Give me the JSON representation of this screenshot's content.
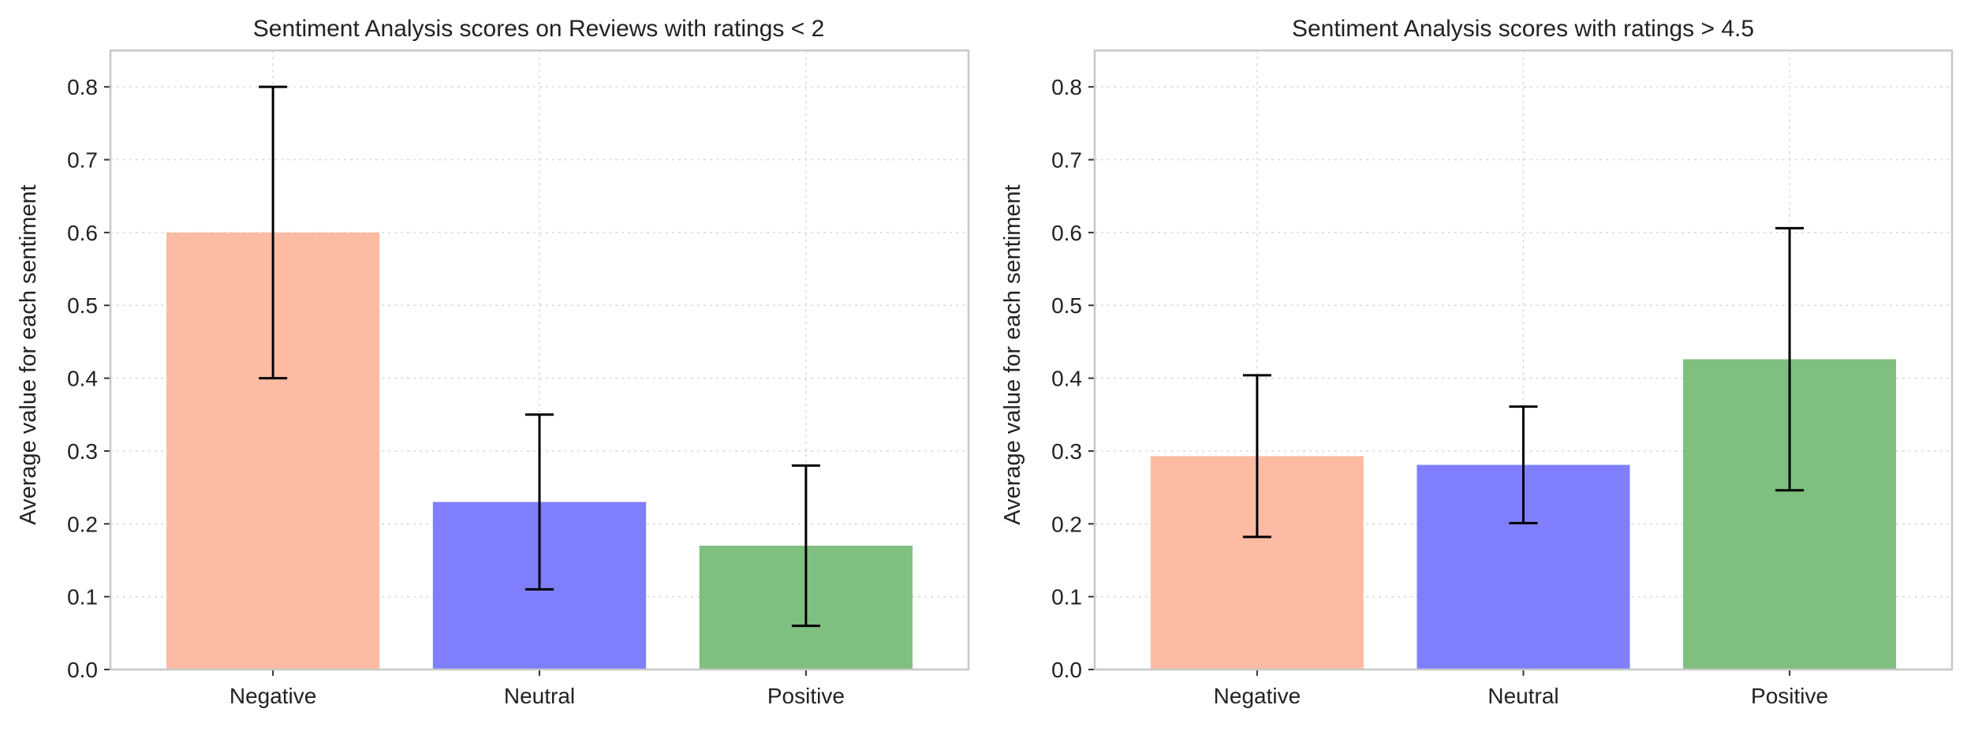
{
  "chart_data": [
    {
      "type": "bar",
      "title": "Sentiment Analysis scores on Reviews with ratings < 2",
      "ylabel": "Average value for each sentiment",
      "xlabel": "",
      "categories": [
        "Negative",
        "Neutral",
        "Positive"
      ],
      "values": [
        0.6,
        0.23,
        0.17
      ],
      "error_low": [
        0.4,
        0.11,
        0.06
      ],
      "error_high": [
        0.8,
        0.35,
        0.28
      ],
      "colors": [
        "#fdbba3",
        "#7f7ffd",
        "#7fbf7f"
      ],
      "ylim": [
        0,
        0.85
      ],
      "yticks": [
        "0.0",
        "0.1",
        "0.2",
        "0.3",
        "0.4",
        "0.5",
        "0.6",
        "0.7",
        "0.8"
      ],
      "grid": true
    },
    {
      "type": "bar",
      "title": "Sentiment Analysis scores with ratings > 4.5",
      "ylabel": "Average value for each sentiment",
      "xlabel": "",
      "categories": [
        "Negative",
        "Neutral",
        "Positive"
      ],
      "values": [
        0.293,
        0.281,
        0.426
      ],
      "error_low": [
        0.182,
        0.201,
        0.246
      ],
      "error_high": [
        0.404,
        0.361,
        0.606
      ],
      "colors": [
        "#fdbba3",
        "#7f7ffd",
        "#7fbf7f"
      ],
      "ylim": [
        0,
        0.85
      ],
      "yticks": [
        "0.0",
        "0.1",
        "0.2",
        "0.3",
        "0.4",
        "0.5",
        "0.6",
        "0.7",
        "0.8"
      ],
      "grid": true
    }
  ]
}
